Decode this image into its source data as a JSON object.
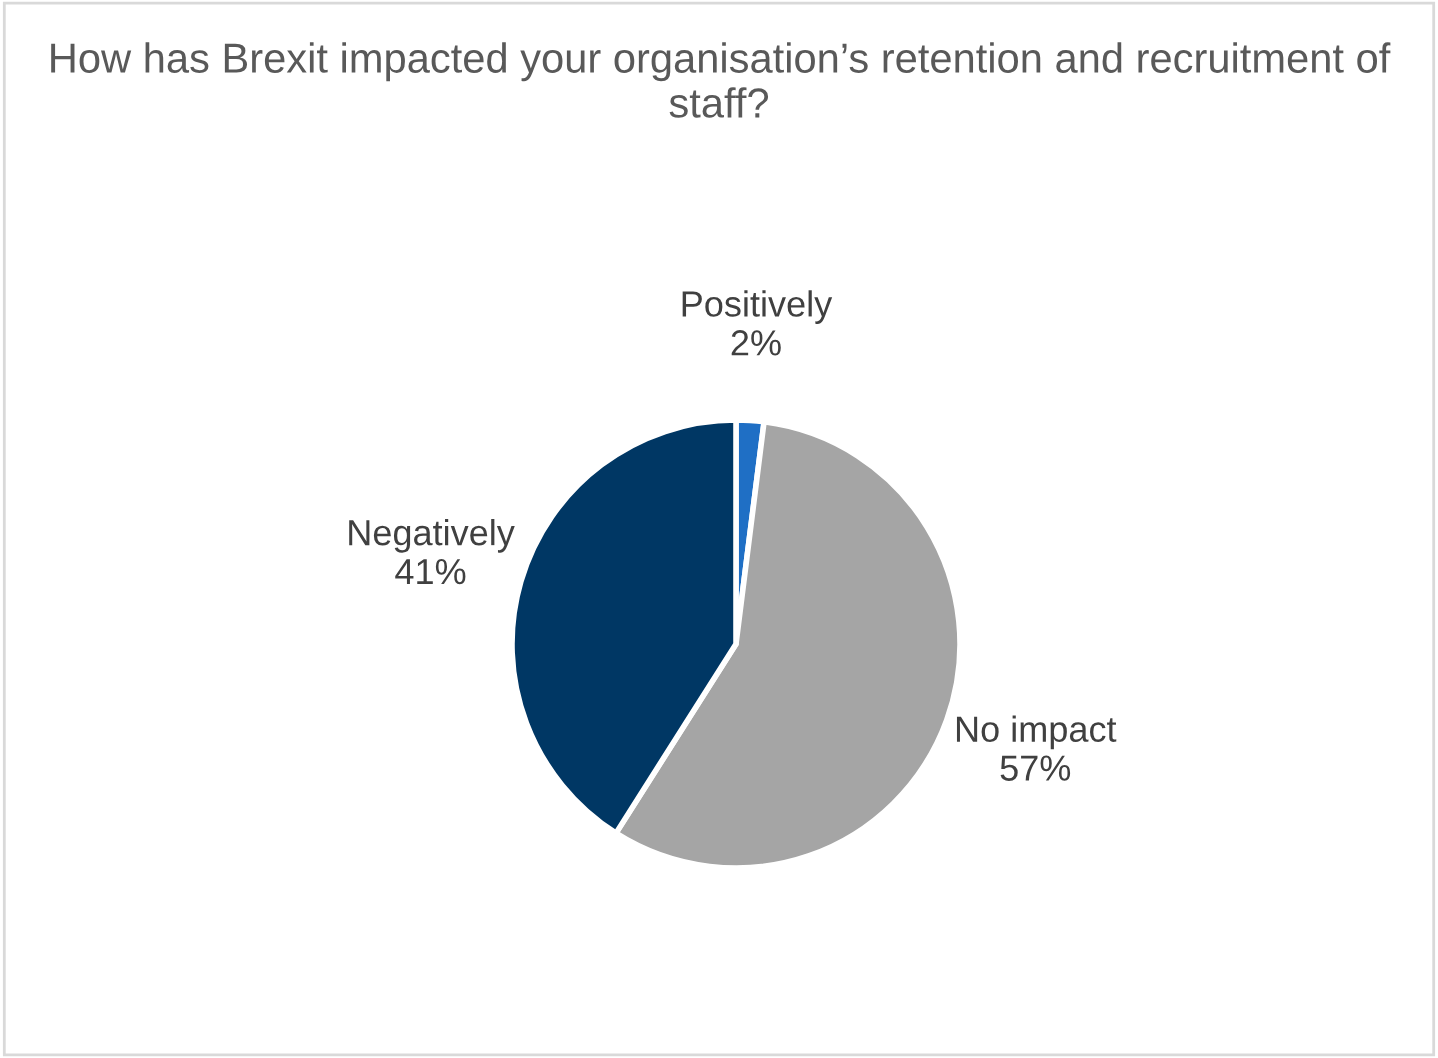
{
  "chart_data": {
    "type": "pie",
    "title": "How has Brexit impacted your organisation’s retention and recruitment of staff?",
    "categories": [
      "Positively",
      "No impact",
      "Negatively"
    ],
    "values": [
      2,
      57,
      41
    ],
    "value_labels": [
      "2%",
      "57%",
      "41%"
    ],
    "colors": [
      "#1f6fc5",
      "#a5a5a5",
      "#003764"
    ],
    "legend": false
  }
}
